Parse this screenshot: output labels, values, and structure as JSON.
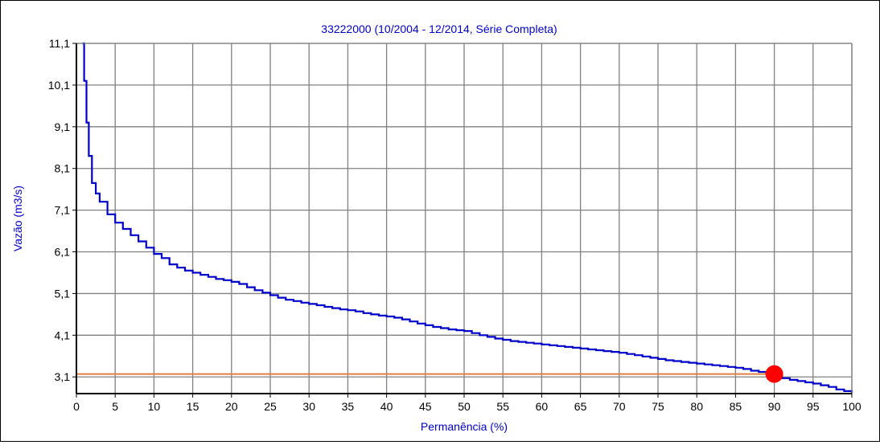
{
  "chart_data": {
    "type": "line",
    "title": "33222000 (10/2004 -  12/2014, Série Completa)",
    "xlabel": "Permanência (%)",
    "ylabel": "Vazão (m3/s)",
    "xlim": [
      0,
      100
    ],
    "ylim": [
      2.7,
      11.1
    ],
    "x_ticks": [
      "0",
      "5",
      "10",
      "15",
      "20",
      "25",
      "30",
      "35",
      "40",
      "45",
      "50",
      "55",
      "60",
      "65",
      "70",
      "75",
      "80",
      "85",
      "90",
      "95",
      "100"
    ],
    "y_ticks": [
      "3,1",
      "4,1",
      "5,1",
      "6,1",
      "7,1",
      "8,1",
      "9,1",
      "10,1",
      "11,1"
    ],
    "grid": true,
    "colors": {
      "curve": "#0000cc",
      "reference_line": "#e08040",
      "marker": "#ff0000",
      "title": "#0000cc",
      "axis_labels": "#0000cc"
    },
    "series": [
      {
        "x": [
          0.8,
          1.0,
          1.3,
          1.6,
          2.0,
          2.5,
          3,
          4,
          5,
          6,
          7,
          8,
          9,
          10,
          11,
          12,
          13,
          14,
          15,
          16,
          17,
          18,
          19,
          20,
          21,
          22,
          23,
          24,
          25,
          26,
          27,
          28,
          29,
          30,
          31,
          32,
          33,
          34,
          35,
          36,
          37,
          38,
          39,
          40,
          41,
          42,
          43,
          44,
          45,
          46,
          47,
          48,
          49,
          50,
          51,
          52,
          53,
          54,
          55,
          56,
          57,
          58,
          59,
          60,
          61,
          62,
          63,
          64,
          65,
          66,
          67,
          68,
          69,
          70,
          71,
          72,
          73,
          74,
          75,
          76,
          77,
          78,
          79,
          80,
          81,
          82,
          83,
          84,
          85,
          86,
          87,
          88,
          89,
          90,
          91,
          92,
          93,
          94,
          95,
          96,
          97,
          98,
          99,
          100
        ],
        "y": [
          11.1,
          10.2,
          9.2,
          8.4,
          7.75,
          7.5,
          7.3,
          7.0,
          6.8,
          6.65,
          6.5,
          6.35,
          6.2,
          6.05,
          5.95,
          5.8,
          5.72,
          5.65,
          5.6,
          5.55,
          5.5,
          5.45,
          5.42,
          5.38,
          5.33,
          5.25,
          5.18,
          5.12,
          5.06,
          5.0,
          4.95,
          4.92,
          4.88,
          4.85,
          4.82,
          4.78,
          4.75,
          4.72,
          4.7,
          4.67,
          4.63,
          4.6,
          4.57,
          4.55,
          4.52,
          4.48,
          4.43,
          4.38,
          4.34,
          4.3,
          4.27,
          4.24,
          4.22,
          4.2,
          4.15,
          4.1,
          4.06,
          4.02,
          3.99,
          3.96,
          3.94,
          3.92,
          3.9,
          3.88,
          3.86,
          3.84,
          3.82,
          3.8,
          3.78,
          3.76,
          3.74,
          3.72,
          3.7,
          3.68,
          3.65,
          3.62,
          3.59,
          3.56,
          3.53,
          3.5,
          3.48,
          3.46,
          3.44,
          3.42,
          3.4,
          3.38,
          3.36,
          3.34,
          3.32,
          3.29,
          3.25,
          3.22,
          3.18,
          3.12,
          3.07,
          3.03,
          3.0,
          2.97,
          2.94,
          2.9,
          2.86,
          2.8,
          2.76,
          2.72
        ]
      }
    ],
    "reference_line": {
      "y": 3.17,
      "x_start": 0,
      "x_end": 90
    },
    "marker": {
      "x": 90,
      "y": 3.17
    }
  }
}
